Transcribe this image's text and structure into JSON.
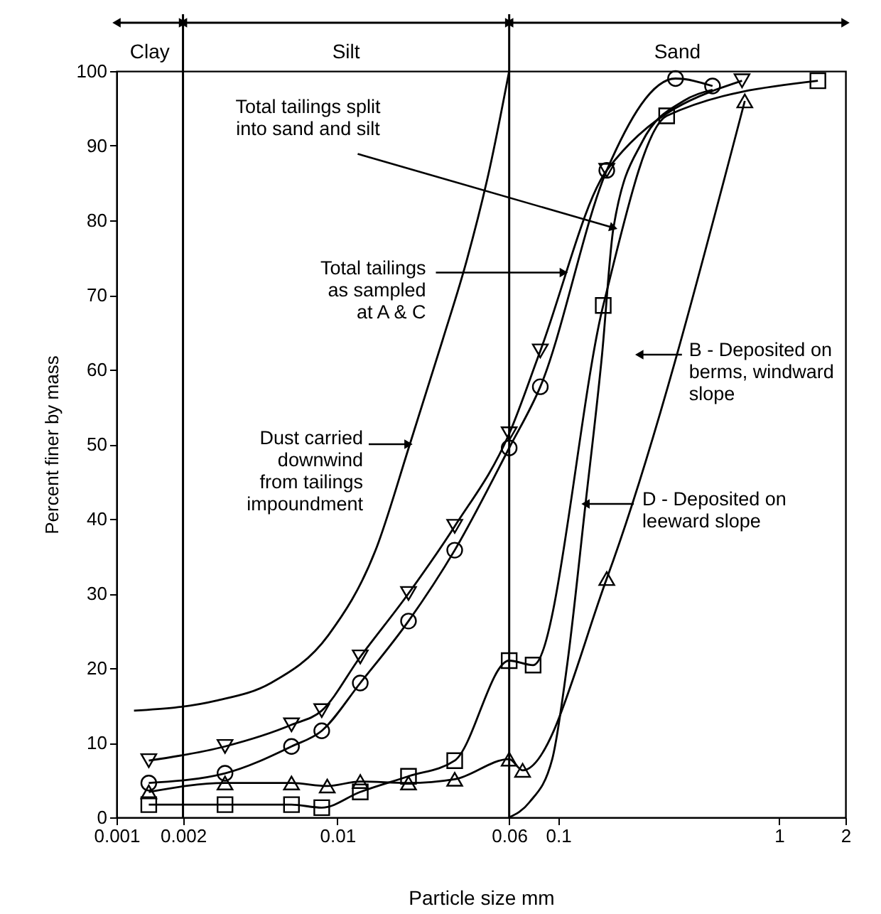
{
  "chart_data": {
    "type": "line",
    "xlabel": "Particle size mm",
    "ylabel": "Percent finer by mass",
    "log": "x",
    "xlim": [
      0.001,
      2
    ],
    "xticks": [
      0.001,
      0.002,
      0.01,
      0.06,
      0.1,
      1,
      2
    ],
    "ylim": [
      0,
      100
    ],
    "yticks": [
      0,
      10,
      20,
      30,
      40,
      50,
      60,
      70,
      80,
      90,
      100
    ],
    "grid": false,
    "series": [
      {
        "color": "#000000",
        "marker": "none",
        "x": [
          0.0012,
          0.0028,
          0.005,
          0.0091,
          0.0149,
          0.0213,
          0.03,
          0.0386,
          0.049,
          0.06
        ],
        "values": [
          14.3,
          15.6,
          18,
          24.4,
          35.8,
          50,
          64,
          74.7,
          87,
          100
        ]
      },
      {
        "color": "#000000",
        "marker": "triangle-down",
        "x": [
          0.0014,
          0.0031,
          0.0062,
          0.0085,
          0.0127,
          0.021,
          0.034,
          0.06,
          0.083,
          0.166,
          0.68
        ],
        "values": [
          7.6,
          9.5,
          12.4,
          14.3,
          21.5,
          30,
          39,
          51.4,
          62.5,
          86.7,
          98.7
        ]
      },
      {
        "color": "#000000",
        "marker": "circle",
        "x": [
          0.0014,
          0.0031,
          0.0062,
          0.0085,
          0.0127,
          0.021,
          0.034,
          0.06,
          0.083,
          0.166,
          0.34,
          0.5
        ],
        "values": [
          4.6,
          5.9,
          9.5,
          11.6,
          18,
          26.3,
          35.8,
          49.5,
          57.7,
          86.7,
          99,
          98
        ]
      },
      {
        "color": "#000000",
        "marker": "triangle",
        "x": [
          0.0014,
          0.0031,
          0.0062,
          0.009,
          0.0127,
          0.021,
          0.034,
          0.06,
          0.069,
          0.166,
          0.7
        ],
        "values": [
          3.4,
          4.6,
          4.6,
          4.2,
          4.8,
          4.6,
          5.1,
          7.8,
          6.3,
          32,
          96
        ]
      },
      {
        "color": "#000000",
        "marker": "square",
        "x": [
          0.0014,
          0.0031,
          0.0062,
          0.0085,
          0.0127,
          0.021,
          0.034,
          0.06,
          0.077,
          0.16,
          0.31,
          1.5
        ],
        "values": [
          1.7,
          1.7,
          1.7,
          1.3,
          3.4,
          5.5,
          7.6,
          21,
          20.4,
          68.6,
          94,
          98.7
        ]
      },
      {
        "color": "#000000",
        "marker": "none",
        "x": [
          0.06,
          0.074,
          0.094,
          0.11,
          0.133,
          0.158,
          0.178,
          0.24,
          0.37,
          0.5
        ],
        "values": [
          0,
          2,
          7.8,
          20.6,
          42,
          62,
          79,
          90.5,
          96,
          97.5
        ]
      }
    ],
    "ref_lines": [
      {
        "axis": "x",
        "value": 0.002
      },
      {
        "axis": "x",
        "value": 0.06
      }
    ],
    "annotations": [
      "Clay",
      "Silt",
      "Sand",
      {
        "text": "Total tailings split\ninto sand and silt",
        "x": 0.178,
        "y": 79
      },
      {
        "text": "Total tailings\nas sampled\nat A & C",
        "x": 0.106,
        "y": 73
      },
      {
        "text": "Dust carried\ndownwind\nfrom tailings\nimpoundment",
        "x": 0.021,
        "y": 50
      },
      {
        "text": "B - Deposited on\nberms, windward\nslope",
        "x": 0.233,
        "y": 62
      },
      {
        "text": "D - Deposited on\nleeward slope",
        "x": 0.133,
        "y": 42
      }
    ]
  }
}
